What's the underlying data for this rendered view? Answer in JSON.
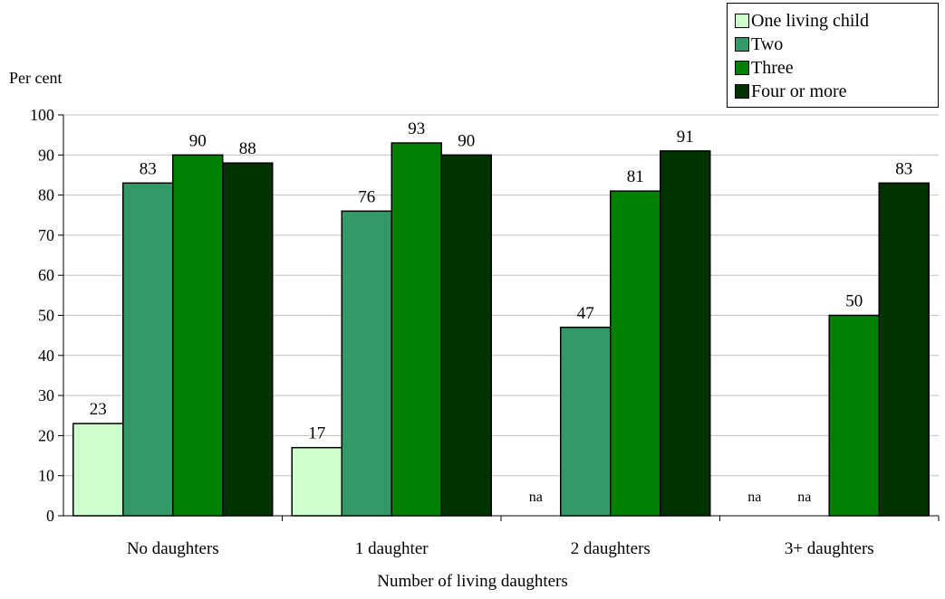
{
  "chart_data": {
    "type": "bar",
    "categories": [
      "No daughters",
      "1 daughter",
      "2 daughters",
      "3+ daughters"
    ],
    "series": [
      {
        "name": "One living child",
        "color": "#ccffcc",
        "values": [
          23,
          17,
          null,
          null
        ],
        "labels": [
          "23",
          "17",
          "na",
          "na"
        ]
      },
      {
        "name": "Two",
        "color": "#339966",
        "values": [
          83,
          76,
          47,
          null
        ],
        "labels": [
          "83",
          "76",
          "47",
          "na"
        ]
      },
      {
        "name": "Three",
        "color": "#008000",
        "values": [
          90,
          93,
          81,
          50
        ],
        "labels": [
          "90",
          "93",
          "81",
          "50"
        ]
      },
      {
        "name": "Four or more",
        "color": "#003300",
        "values": [
          88,
          90,
          91,
          83
        ],
        "labels": [
          "88",
          "90",
          "91",
          "83"
        ]
      }
    ],
    "ylabel": "Per cent",
    "xlabel": "Number of living daughters",
    "ylim": [
      0,
      100
    ],
    "yticks": [
      0,
      10,
      20,
      30,
      40,
      50,
      60,
      70,
      80,
      90,
      100
    ],
    "grid": true,
    "legend_position": "top-right"
  }
}
